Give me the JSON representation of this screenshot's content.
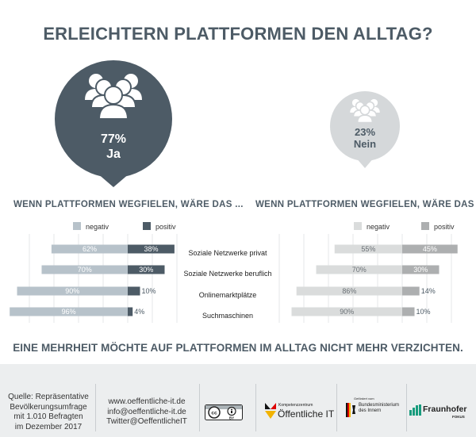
{
  "title": "ERLEICHTERN PLATTFORMEN DEN ALLTAG?",
  "answers": {
    "ja": {
      "percent": "77%",
      "label": "Ja",
      "value": 77
    },
    "nein": {
      "percent": "23%",
      "label": "Nein",
      "value": 23
    }
  },
  "colors": {
    "dark_slate": "#4d5b66",
    "light_slate": "#b7c2ca",
    "gray_light": "#dadcdc",
    "gray_mid": "#adafb0"
  },
  "chart_data": [
    {
      "type": "bar",
      "subtype": "diverging-stacked",
      "group": "Ja",
      "title": "WENN PLATTFORMEN WEGFIELEN, WÄRE DAS ...",
      "categories": [
        "Soziale Netzwerke privat",
        "Soziale Netzwerke beruflich",
        "Onlinemarktplätze",
        "Suchmaschinen"
      ],
      "series": [
        {
          "name": "negativ",
          "values": [
            62,
            70,
            90,
            96
          ],
          "labels": [
            "62%",
            "70%",
            "90%",
            "96%"
          ],
          "color": "#b7c2ca"
        },
        {
          "name": "positiv",
          "values": [
            38,
            30,
            10,
            4
          ],
          "labels": [
            "38%",
            "30%",
            "10%",
            "4%"
          ],
          "color": "#4d5b66"
        }
      ],
      "legend": "top"
    },
    {
      "type": "bar",
      "subtype": "diverging-stacked",
      "group": "Nein",
      "title": "WENN PLATTFORMEN WEGFIELEN, WÄRE DAS ...",
      "categories": [
        "Soziale Netzwerke privat",
        "Soziale Netzwerke beruflich",
        "Onlinemarktplätze",
        "Suchmaschinen"
      ],
      "series": [
        {
          "name": "negativ",
          "values": [
            55,
            70,
            86,
            90
          ],
          "labels": [
            "55%",
            "70%",
            "86%",
            "90%"
          ],
          "color": "#dadcdc"
        },
        {
          "name": "positiv",
          "values": [
            45,
            30,
            14,
            10
          ],
          "labels": [
            "45%",
            "30%",
            "14%",
            "10%"
          ],
          "color": "#adafb0"
        }
      ],
      "legend": "top"
    }
  ],
  "summary": "EINE MEHRHEIT MÖCHTE AUF PLATTFORMEN IM ALLTAG NICHT MEHR VERZICHTEN.",
  "footer": {
    "source_lines": [
      "Quelle: Repräsentative",
      "Bevölkerungsumfrage",
      "mit 1.010 Befragten",
      "im Dezember 2017"
    ],
    "web_lines": [
      "www.oeffentliche-it.de",
      "info@oeffentliche-it.de",
      "Twitter@OeffentlicheIT"
    ],
    "cc_badge": "BY",
    "logo_oeffit_small": "Kompetenzzentrum",
    "logo_oeffit": "Öffentliche IT",
    "logo_bmi_small": "Gefördert vom",
    "logo_bmi_lines": [
      "Bundesministerium",
      "des Innern"
    ],
    "logo_fraunhofer": "Fraunhofer",
    "logo_fraunhofer_sub": "FOKUS"
  }
}
